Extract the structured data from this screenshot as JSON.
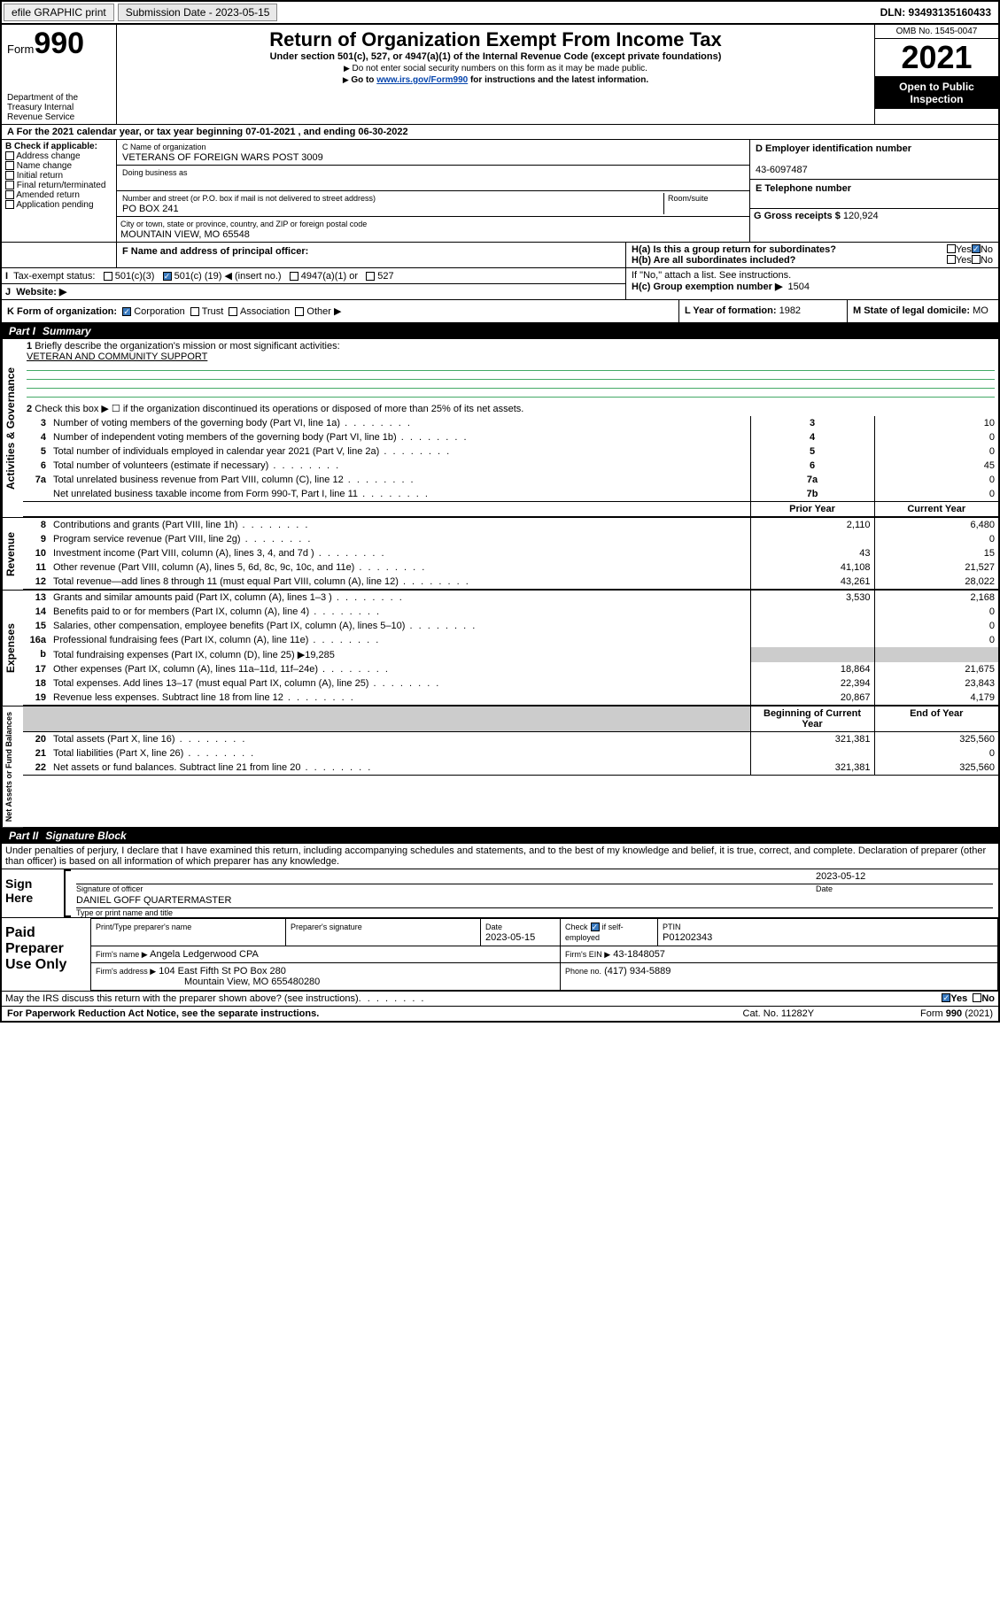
{
  "topbar": {
    "efile": "efile GRAPHIC print",
    "sub_label": "Submission Date - 2023-05-15",
    "dln": "DLN: 93493135160433"
  },
  "header": {
    "form_word": "Form",
    "form_num": "990",
    "dept": "Department of the Treasury Internal Revenue Service",
    "title": "Return of Organization Exempt From Income Tax",
    "sub1": "Under section 501(c), 527, or 4947(a)(1) of the Internal Revenue Code (except private foundations)",
    "sub2": "Do not enter social security numbers on this form as it may be made public.",
    "sub3_pre": "Go to ",
    "sub3_link": "www.irs.gov/Form990",
    "sub3_post": " for instructions and the latest information.",
    "omb": "OMB No. 1545-0047",
    "year": "2021",
    "open_pub": "Open to Public Inspection"
  },
  "A": {
    "line": "For the 2021 calendar year, or tax year beginning 07-01-2021 , and ending 06-30-2022"
  },
  "B": {
    "header": "B Check if applicable:",
    "opts": [
      "Address change",
      "Name change",
      "Initial return",
      "Final return/terminated",
      "Amended return",
      "Application pending"
    ]
  },
  "C": {
    "name_lbl": "C Name of organization",
    "name": "VETERANS OF FOREIGN WARS POST 3009",
    "dba_lbl": "Doing business as",
    "addr_lbl": "Number and street (or P.O. box if mail is not delivered to street address)",
    "room_lbl": "Room/suite",
    "addr": "PO BOX 241",
    "city_lbl": "City or town, state or province, country, and ZIP or foreign postal code",
    "city": "MOUNTAIN VIEW, MO  65548"
  },
  "D": {
    "lbl": "D Employer identification number",
    "val": "43-6097487"
  },
  "E": {
    "lbl": "E Telephone number"
  },
  "G": {
    "lbl": "G Gross receipts $",
    "val": "120,924"
  },
  "F": {
    "lbl": "F  Name and address of principal officer:"
  },
  "H": {
    "a_lbl": "H(a)  Is this a group return for subordinates?",
    "yes": "Yes",
    "no": "No",
    "b_lbl": "H(b)  Are all subordinates included?",
    "b_note": "If \"No,\" attach a list. See instructions.",
    "c_lbl": "H(c)  Group exemption number ▶",
    "c_val": "1504"
  },
  "I": {
    "lbl": "Tax-exempt status:",
    "o1": "501(c)(3)",
    "o2_pre": "501(c) (",
    "o2_val": "19",
    "o2_post": ") ◀ (insert no.)",
    "o3": "4947(a)(1) or",
    "o4": "527"
  },
  "J": {
    "lbl": "Website: ▶"
  },
  "K": {
    "lbl": "K Form of organization:",
    "o1": "Corporation",
    "o2": "Trust",
    "o3": "Association",
    "o4": "Other ▶"
  },
  "L": {
    "lbl": "L Year of formation:",
    "val": "1982"
  },
  "M": {
    "lbl": "M State of legal domicile:",
    "val": "MO"
  },
  "part1_title": "Part I",
  "part1_sub": "Summary",
  "part1_line1_lbl": "Briefly describe the organization's mission or most significant activities:",
  "part1_line1_val": "VETERAN AND COMMUNITY SUPPORT",
  "part1_line2": "Check this box ▶ ☐  if the organization discontinued its operations or disposed of more than 25% of its net assets.",
  "vlabels": {
    "gov": "Activities & Governance",
    "rev": "Revenue",
    "exp": "Expenses",
    "net": "Net Assets or Fund Balances"
  },
  "gov_rows": [
    {
      "n": "3",
      "t": "Number of voting members of the governing body (Part VI, line 1a)",
      "box": "3",
      "v": "10"
    },
    {
      "n": "4",
      "t": "Number of independent voting members of the governing body (Part VI, line 1b)",
      "box": "4",
      "v": "0"
    },
    {
      "n": "5",
      "t": "Total number of individuals employed in calendar year 2021 (Part V, line 2a)",
      "box": "5",
      "v": "0"
    },
    {
      "n": "6",
      "t": "Total number of volunteers (estimate if necessary)",
      "box": "6",
      "v": "45"
    },
    {
      "n": "7a",
      "t": "Total unrelated business revenue from Part VIII, column (C), line 12",
      "box": "7a",
      "v": "0"
    },
    {
      "n": "",
      "t": "Net unrelated business taxable income from Form 990-T, Part I, line 11",
      "box": "7b",
      "v": "0"
    }
  ],
  "col_headers": {
    "prior": "Prior Year",
    "current": "Current Year"
  },
  "rev_rows": [
    {
      "n": "8",
      "t": "Contributions and grants (Part VIII, line 1h)",
      "p": "2,110",
      "c": "6,480"
    },
    {
      "n": "9",
      "t": "Program service revenue (Part VIII, line 2g)",
      "p": "",
      "c": "0"
    },
    {
      "n": "10",
      "t": "Investment income (Part VIII, column (A), lines 3, 4, and 7d )",
      "p": "43",
      "c": "15"
    },
    {
      "n": "11",
      "t": "Other revenue (Part VIII, column (A), lines 5, 6d, 8c, 9c, 10c, and 11e)",
      "p": "41,108",
      "c": "21,527"
    },
    {
      "n": "12",
      "t": "Total revenue—add lines 8 through 11 (must equal Part VIII, column (A), line 12)",
      "p": "43,261",
      "c": "28,022"
    }
  ],
  "exp_rows": [
    {
      "n": "13",
      "t": "Grants and similar amounts paid (Part IX, column (A), lines 1–3 )",
      "p": "3,530",
      "c": "2,168"
    },
    {
      "n": "14",
      "t": "Benefits paid to or for members (Part IX, column (A), line 4)",
      "p": "",
      "c": "0"
    },
    {
      "n": "15",
      "t": "Salaries, other compensation, employee benefits (Part IX, column (A), lines 5–10)",
      "p": "",
      "c": "0"
    },
    {
      "n": "16a",
      "t": "Professional fundraising fees (Part IX, column (A), line 11e)",
      "p": "",
      "c": "0"
    },
    {
      "n": "b",
      "t": "Total fundraising expenses (Part IX, column (D), line 25) ▶19,285",
      "p": "grey",
      "c": "grey"
    },
    {
      "n": "17",
      "t": "Other expenses (Part IX, column (A), lines 11a–11d, 11f–24e)",
      "p": "18,864",
      "c": "21,675"
    },
    {
      "n": "18",
      "t": "Total expenses. Add lines 13–17 (must equal Part IX, column (A), line 25)",
      "p": "22,394",
      "c": "23,843"
    },
    {
      "n": "19",
      "t": "Revenue less expenses. Subtract line 18 from line 12",
      "p": "20,867",
      "c": "4,179"
    }
  ],
  "net_headers": {
    "begin": "Beginning of Current Year",
    "end": "End of Year"
  },
  "net_rows": [
    {
      "n": "20",
      "t": "Total assets (Part X, line 16)",
      "p": "321,381",
      "c": "325,560"
    },
    {
      "n": "21",
      "t": "Total liabilities (Part X, line 26)",
      "p": "",
      "c": "0"
    },
    {
      "n": "22",
      "t": "Net assets or fund balances. Subtract line 21 from line 20",
      "p": "321,381",
      "c": "325,560"
    }
  ],
  "part2_title": "Part II",
  "part2_sub": "Signature Block",
  "part2_decl": "Under penalties of perjury, I declare that I have examined this return, including accompanying schedules and statements, and to the best of my knowledge and belief, it is true, correct, and complete. Declaration of preparer (other than officer) is based on all information of which preparer has any knowledge.",
  "sign": {
    "here": "Sign Here",
    "sig_lbl": "Signature of officer",
    "date": "2023-05-12",
    "date_lbl": "Date",
    "name": "DANIEL GOFF QUARTERMASTER",
    "name_lbl": "Type or print name and title"
  },
  "paid": {
    "title": "Paid Preparer Use Only",
    "h1": "Print/Type preparer's name",
    "h2": "Preparer's signature",
    "h3_lbl": "Date",
    "h3_val": "2023-05-15",
    "h4_lbl": "Check",
    "h4_suf": "if self-employed",
    "h5_lbl": "PTIN",
    "h5_val": "P01202343",
    "firm_name_lbl": "Firm's name  ▶",
    "firm_name": "Angela Ledgerwood CPA",
    "firm_ein_lbl": "Firm's EIN ▶",
    "firm_ein": "43-1848057",
    "firm_addr_lbl": "Firm's address ▶",
    "firm_addr1": "104 East Fifth St PO Box 280",
    "firm_addr2": "Mountain View, MO  655480280",
    "phone_lbl": "Phone no.",
    "phone": "(417) 934-5889"
  },
  "may_discuss": "May the IRS discuss this return with the preparer shown above? (see instructions)",
  "yes": "Yes",
  "no": "No",
  "footer": {
    "left": "For Paperwork Reduction Act Notice, see the separate instructions.",
    "mid": "Cat. No. 11282Y",
    "right": "Form 990 (2021)"
  }
}
